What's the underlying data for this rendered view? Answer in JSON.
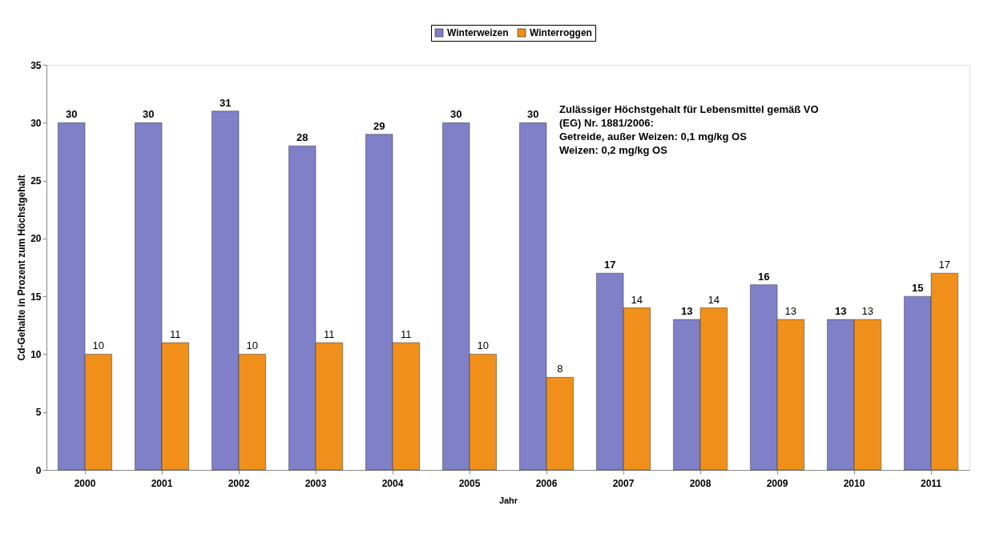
{
  "chart_data": {
    "type": "bar",
    "xlabel": "Jahr",
    "ylabel": "Cd-Gehalte in Prozent zum Höchstgehalt",
    "categories": [
      "2000",
      "2001",
      "2002",
      "2003",
      "2004",
      "2005",
      "2006",
      "2007",
      "2008",
      "2009",
      "2010",
      "2011"
    ],
    "series": [
      {
        "name": "Winterweizen",
        "color": "#8080c8",
        "values": [
          30,
          30,
          31,
          28,
          29,
          30,
          30,
          17,
          13,
          16,
          13,
          15
        ]
      },
      {
        "name": "Winterroggen",
        "color": "#f0901a",
        "values": [
          10,
          11,
          10,
          11,
          11,
          10,
          8,
          14,
          14,
          13,
          13,
          17
        ]
      }
    ],
    "ylim": [
      0,
      35
    ],
    "yticks": [
      0,
      5,
      10,
      15,
      20,
      25,
      30,
      35
    ],
    "grid": false,
    "legend": "top",
    "data_labels": true,
    "annotations": [
      "Zulässiger Höchstgehalt für Lebensmittel gemäß VO (EG) Nr. 1881/2006:",
      "Getreide, außer Weizen: 0,1 mg/kg OS",
      "Weizen:                      0,2 mg/kg OS"
    ]
  }
}
